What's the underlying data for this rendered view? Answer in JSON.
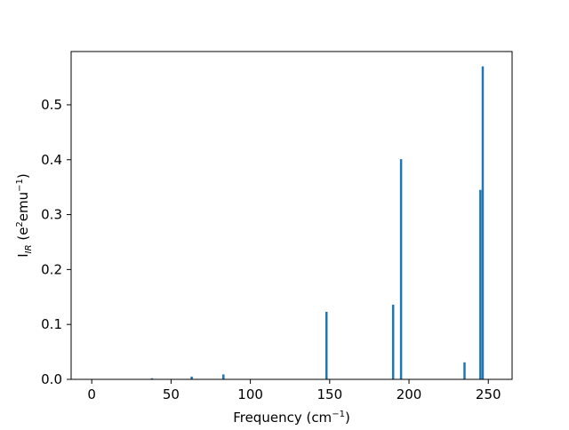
{
  "chart_data": {
    "type": "bar",
    "xlabel": {
      "main": "Frequency (cm",
      "sup": "−1",
      "end": ")"
    },
    "ylabel": {
      "part1": "I",
      "sub": "IR",
      "part2": " (e",
      "sup1": "2",
      "part3": "emu",
      "sup2": "−1",
      "part4": ")"
    },
    "xlim": [
      -13,
      265
    ],
    "ylim": [
      0,
      0.597
    ],
    "x_ticks": [
      0,
      50,
      100,
      150,
      200,
      250
    ],
    "y_ticks": [
      0.0,
      0.1,
      0.2,
      0.3,
      0.4,
      0.5
    ],
    "y_tick_labels": [
      "0.0",
      "0.1",
      "0.2",
      "0.3",
      "0.4",
      "0.5"
    ],
    "bar_width": 2,
    "bar_color": "#1f77b4",
    "grid": false,
    "bars": [
      {
        "x": 38,
        "value": 0.002
      },
      {
        "x": 63,
        "value": 0.005
      },
      {
        "x": 83,
        "value": 0.009
      },
      {
        "x": 148,
        "value": 0.123
      },
      {
        "x": 190,
        "value": 0.136
      },
      {
        "x": 195,
        "value": 0.401
      },
      {
        "x": 235,
        "value": 0.031
      },
      {
        "x": 245,
        "value": 0.345
      },
      {
        "x": 246.5,
        "value": 0.57
      }
    ]
  }
}
